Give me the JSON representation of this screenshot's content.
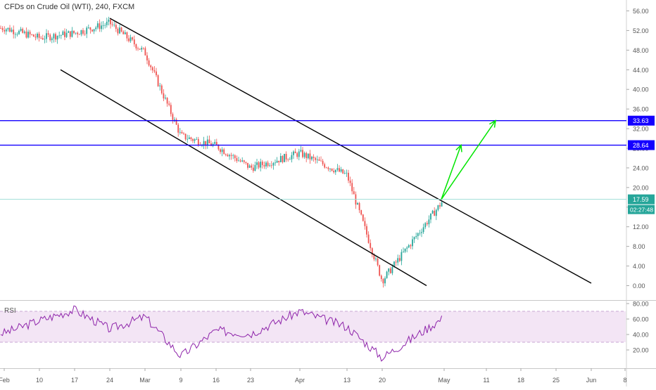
{
  "title": "CFDs on Crude Oil (WTI), 240, FXCM",
  "rsi_label": "RSI",
  "colors": {
    "up": "#26a69a",
    "down": "#ef5350",
    "channel": "#000000",
    "hline": "#1400ff",
    "last_price": "#26a69a",
    "projection": "#00e600",
    "rsi_line": "#8e24aa",
    "rsi_band": "#f3e5f5"
  },
  "chart_data": [
    {
      "type": "candlestick",
      "symbol": "CFDs on Crude Oil (WTI)",
      "timeframe": "240",
      "source": "FXCM",
      "y_axis_ticks": [
        "56.00",
        "52.00",
        "48.00",
        "44.00",
        "40.00",
        "36.00",
        "32.00",
        "28.00",
        "24.00",
        "20.00",
        "16.00",
        "12.00",
        "8.00",
        "4.00",
        "0.00"
      ],
      "ylim": [
        -2,
        57.5
      ],
      "x_axis_ticks": [
        "Feb",
        "10",
        "17",
        "24",
        "Mar",
        "9",
        "16",
        "23",
        "Apr",
        "13",
        "20",
        "May",
        "11",
        "18",
        "25",
        "Jun",
        "8"
      ],
      "price_path": [
        [
          "Feb",
          52.5
        ],
        [
          "10",
          50.5
        ],
        [
          "17",
          51.5
        ],
        [
          "24",
          53.5
        ],
        [
          "Mar",
          47.5
        ],
        [
          "9",
          30.5
        ],
        [
          "16",
          28.5
        ],
        [
          "23",
          24.0
        ],
        [
          "Apr",
          27.0
        ],
        [
          "13",
          22.5
        ],
        [
          "20",
          1.0
        ],
        [
          "May",
          17.6
        ]
      ],
      "horizontal_lines": [
        {
          "price": 33.63,
          "label": "33.63"
        },
        {
          "price": 28.64,
          "label": "28.64"
        }
      ],
      "last_price": {
        "price": 17.59,
        "label": "17.59",
        "countdown": "02:27:48"
      },
      "channel": {
        "upper": [
          [
            "24",
            54.5
          ],
          [
            "Jun",
            0.5
          ]
        ],
        "lower": [
          [
            "10",
            44.0
          ],
          [
            "20",
            0.0
          ]
        ]
      },
      "projection_arrows": [
        {
          "from": [
            "May",
            17.59
          ],
          "to": [
            "11",
            28.64
          ]
        },
        {
          "from": [
            "May",
            17.59
          ],
          "to": [
            "18",
            33.63
          ]
        }
      ]
    },
    {
      "type": "line",
      "name": "RSI",
      "y_axis_ticks": [
        "80.00",
        "60.00",
        "40.00",
        "20.00"
      ],
      "ylim": [
        2,
        82
      ],
      "band": [
        30,
        70
      ],
      "series": [
        {
          "x": "Feb",
          "value": 42
        },
        {
          "x": "10",
          "value": 58
        },
        {
          "x": "17",
          "value": 72
        },
        {
          "x": "24",
          "value": 47
        },
        {
          "x": "Mar",
          "value": 63
        },
        {
          "x": "9",
          "value": 12
        },
        {
          "x": "16",
          "value": 45
        },
        {
          "x": "23",
          "value": 41
        },
        {
          "x": "Apr",
          "value": 70
        },
        {
          "x": "13",
          "value": 50
        },
        {
          "x": "20",
          "value": 10
        },
        {
          "x": "May",
          "value": 62
        }
      ]
    }
  ]
}
